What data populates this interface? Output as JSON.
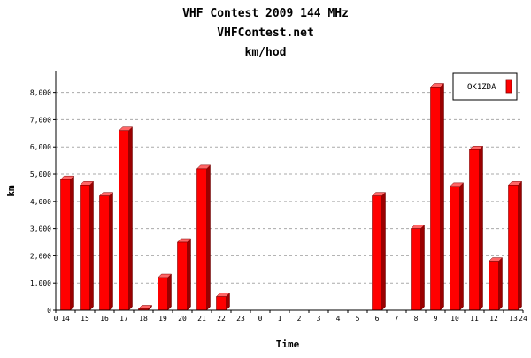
{
  "chart_data": {
    "type": "bar",
    "title": "VHF Contest 2009 144 MHz",
    "subtitle": "VHFContest.net",
    "subtitle2": "km/hod",
    "xlabel": "Time",
    "ylabel": "km",
    "ylim": [
      0,
      8800
    ],
    "y_ticks": [
      0,
      1000,
      2000,
      3000,
      4000,
      5000,
      6000,
      7000,
      8000
    ],
    "y_tick_labels": [
      "0",
      "1,000",
      "2,000",
      "3,000",
      "4,000",
      "5,000",
      "6,000",
      "7,000",
      "8,000"
    ],
    "x_start_label": "0",
    "x_end_label": "24",
    "categories": [
      "14",
      "15",
      "16",
      "17",
      "18",
      "19",
      "20",
      "21",
      "22",
      "23",
      "0",
      "1",
      "2",
      "3",
      "4",
      "5",
      "6",
      "7",
      "8",
      "9",
      "10",
      "11",
      "12",
      "13"
    ],
    "series": [
      {
        "name": "OK1ZDA",
        "color": "#ff0000",
        "values": [
          4800,
          4600,
          4200,
          6600,
          50,
          1200,
          2500,
          5200,
          500,
          0,
          0,
          0,
          0,
          0,
          0,
          0,
          4200,
          0,
          3000,
          8200,
          4550,
          5900,
          1800,
          4600
        ]
      }
    ],
    "grid": true,
    "legend_position": "top-right"
  }
}
